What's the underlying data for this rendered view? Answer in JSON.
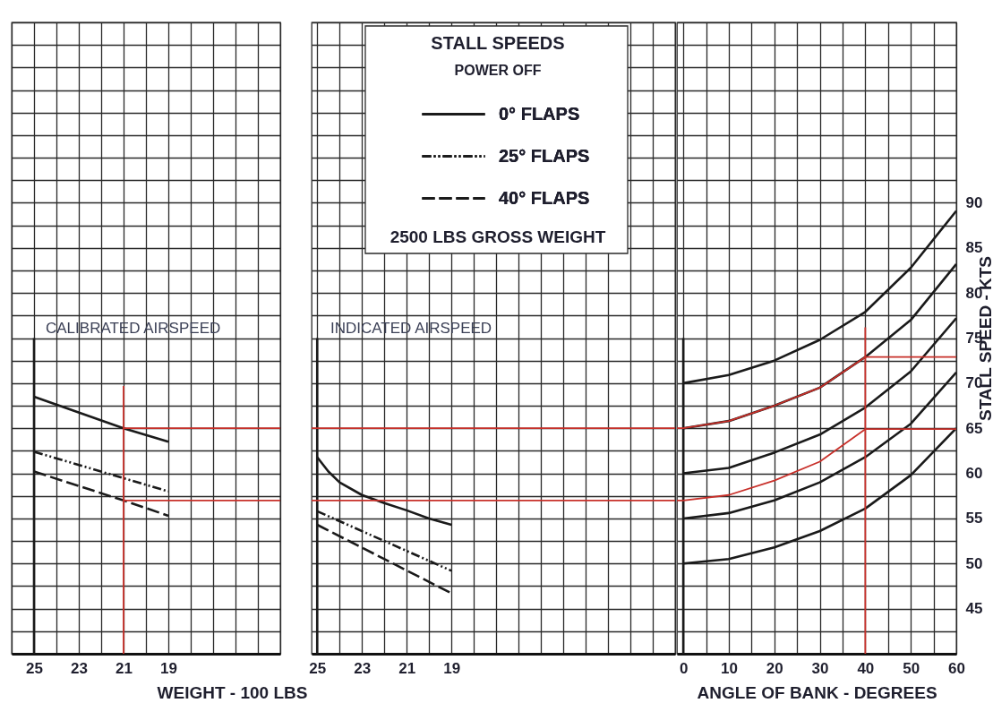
{
  "chart_data": [
    {
      "type": "line",
      "title": "CALIBRATED AIRSPEED",
      "xlabel": "WEIGHT - 100 LBS",
      "xlim": [
        26,
        14
      ],
      "ylim": [
        40,
        110
      ],
      "grid": true,
      "tick_labels": "x",
      "xticks": [
        {
          "value": 26,
          "label": null
        },
        25,
        {
          "value": 24,
          "label": null
        },
        23,
        {
          "value": 22,
          "label": null
        },
        21,
        {
          "value": 20,
          "label": null
        },
        19,
        {
          "value": 18,
          "label": null
        },
        {
          "value": 17,
          "label": null
        },
        {
          "value": 16,
          "label": null
        },
        {
          "value": 15,
          "label": null
        },
        {
          "value": 14,
          "label": null
        }
      ],
      "yticks": [
        {
          "value": 40,
          "label": null
        },
        {
          "value": 42.5,
          "label": null
        },
        45,
        {
          "value": 47.5,
          "label": null
        },
        50,
        {
          "value": 52.5,
          "label": null
        },
        55,
        {
          "value": 57.5,
          "label": null
        },
        60,
        {
          "value": 62.5,
          "label": null
        },
        65,
        {
          "value": 67.5,
          "label": null
        },
        70,
        {
          "value": 72.5,
          "label": null
        },
        75,
        {
          "value": 77.5,
          "label": null
        },
        80,
        {
          "value": 82.5,
          "label": null
        },
        85,
        {
          "value": 87.5,
          "label": null
        },
        90,
        {
          "value": 92.5,
          "label": null
        },
        {
          "value": 95,
          "label": null
        },
        {
          "value": 97.5,
          "label": null
        },
        {
          "value": 100,
          "label": null
        },
        {
          "value": 102.5,
          "label": null
        },
        {
          "value": 105,
          "label": null
        },
        {
          "value": 107.5,
          "label": null
        },
        {
          "value": 110,
          "label": null
        }
      ],
      "series": [
        {
          "color": "#1a1a1a",
          "line_style": "solid",
          "x": [
            25,
            21,
            19
          ],
          "values": [
            68.5,
            65,
            63.5
          ]
        },
        {
          "color": "#1a1a1a",
          "line_style": "dotted",
          "x": [
            25,
            19
          ],
          "values": [
            62.4,
            58.0
          ]
        },
        {
          "color": "#1a1a1a",
          "line_style": "dashed",
          "x": [
            25,
            21,
            19
          ],
          "values": [
            60.2,
            57,
            55.3
          ]
        },
        {
          "color": "#1a1a1a",
          "line_style": "solid",
          "x": [
            25,
            25
          ],
          "values": [
            40,
            75
          ]
        },
        {
          "color": "#c8302a",
          "line_style": "solid",
          "x": [
            21,
            21
          ],
          "values": [
            40,
            69.7
          ]
        },
        {
          "color": "#c8302a",
          "line_style": "solid",
          "x": [
            21,
            14
          ],
          "values": [
            65,
            65
          ]
        },
        {
          "color": "#c8302a",
          "line_style": "solid",
          "x": [
            21,
            14
          ],
          "values": [
            57,
            57
          ]
        }
      ]
    },
    {
      "type": "line",
      "title": "INDICATED AIRSPEED",
      "annotations": [
        "STALL SPEEDS",
        "POWER OFF",
        "2500 LBS GROSS WEIGHT"
      ],
      "legend": "top",
      "xlim": [
        25.25,
        9
      ],
      "ylim": [
        40,
        110
      ],
      "grid": true,
      "tick_labels": "x",
      "xticks": [
        25,
        {
          "value": 24,
          "label": null
        },
        23,
        {
          "value": 22,
          "label": null
        },
        21,
        {
          "value": 20,
          "label": null
        },
        19,
        {
          "value": 18,
          "label": null
        },
        {
          "value": 17,
          "label": null
        },
        {
          "value": 16,
          "label": null
        },
        {
          "value": 15,
          "label": null
        },
        {
          "value": 14,
          "label": null
        },
        {
          "value": 13,
          "label": null
        },
        {
          "value": 12,
          "label": null
        },
        {
          "value": 11,
          "label": null
        },
        {
          "value": 10,
          "label": null
        },
        {
          "value": 9,
          "label": null
        }
      ],
      "yticks": [
        {
          "value": 40,
          "label": null
        },
        {
          "value": 42.5,
          "label": null
        },
        45,
        {
          "value": 47.5,
          "label": null
        },
        50,
        {
          "value": 52.5,
          "label": null
        },
        55,
        {
          "value": 57.5,
          "label": null
        },
        60,
        {
          "value": 62.5,
          "label": null
        },
        65,
        {
          "value": 67.5,
          "label": null
        },
        70,
        {
          "value": 72.5,
          "label": null
        },
        75,
        {
          "value": 77.5,
          "label": null
        },
        80,
        {
          "value": 82.5,
          "label": null
        },
        85,
        {
          "value": 87.5,
          "label": null
        },
        90,
        {
          "value": 92.5,
          "label": null
        },
        {
          "value": 95,
          "label": null
        },
        {
          "value": 97.5,
          "label": null
        },
        {
          "value": 100,
          "label": null
        },
        {
          "value": 102.5,
          "label": null
        },
        {
          "value": 105,
          "label": null
        },
        {
          "value": 107.5,
          "label": null
        },
        {
          "value": 110,
          "label": null
        }
      ],
      "series": [
        {
          "name": "0° FLAPS",
          "color": "#1a1a1a",
          "line_style": "solid",
          "x": [
            25,
            24.5,
            24,
            23,
            22,
            21,
            20,
            19
          ],
          "values": [
            61.8,
            60.2,
            59,
            57.6,
            56.7,
            55.9,
            55,
            54.3
          ]
        },
        {
          "name": "25° FLAPS",
          "color": "#1a1a1a",
          "line_style": "dotted",
          "x": [
            25,
            19
          ],
          "values": [
            55.8,
            49.2
          ]
        },
        {
          "name": "40° FLAPS",
          "color": "#1a1a1a",
          "line_style": "dashed",
          "x": [
            25,
            19
          ],
          "values": [
            54.3,
            46.7
          ]
        },
        {
          "color": "#1a1a1a",
          "line_style": "solid",
          "x": [
            25,
            25
          ],
          "values": [
            40,
            75
          ]
        },
        {
          "color": "#c8302a",
          "line_style": "solid",
          "x": [
            25.25,
            9
          ],
          "values": [
            65,
            65
          ]
        },
        {
          "color": "#c8302a",
          "line_style": "solid",
          "x": [
            25.25,
            9
          ],
          "values": [
            57,
            57
          ]
        }
      ]
    },
    {
      "type": "line",
      "xlabel": "ANGLE OF BANK - DEGREES",
      "ylabel": "STALL SPEED - KTS",
      "xlim": [
        -1.4,
        60
      ],
      "ylim": [
        40,
        110
      ],
      "grid": true,
      "xticks": [
        0,
        {
          "value": 5,
          "label": null
        },
        10,
        {
          "value": 15,
          "label": null
        },
        20,
        {
          "value": 25,
          "label": null
        },
        30,
        {
          "value": 35,
          "label": null
        },
        40,
        {
          "value": 45,
          "label": null
        },
        50,
        {
          "value": 55,
          "label": null
        },
        60
      ],
      "yticks": [
        {
          "value": 40,
          "label": null
        },
        {
          "value": 42.5,
          "label": null
        },
        45,
        {
          "value": 47.5,
          "label": null
        },
        50,
        {
          "value": 52.5,
          "label": null
        },
        55,
        {
          "value": 57.5,
          "label": null
        },
        60,
        {
          "value": 62.5,
          "label": null
        },
        65,
        {
          "value": 67.5,
          "label": null
        },
        70,
        {
          "value": 72.5,
          "label": null
        },
        75,
        {
          "value": 77.5,
          "label": null
        },
        80,
        {
          "value": 82.5,
          "label": null
        },
        85,
        {
          "value": 87.5,
          "label": null
        },
        90,
        {
          "value": 92.5,
          "label": null
        },
        {
          "value": 95,
          "label": null
        },
        {
          "value": 97.5,
          "label": null
        },
        {
          "value": 100,
          "label": null
        },
        {
          "value": 102.5,
          "label": null
        },
        {
          "value": 105,
          "label": null
        },
        {
          "value": 107.5,
          "label": null
        },
        {
          "value": 110,
          "label": null
        }
      ],
      "series": [
        {
          "color": "#1a1a1a",
          "line_style": "solid",
          "x": [
            0,
            10,
            20,
            30,
            40,
            50,
            60
          ],
          "values": [
            70,
            70.9,
            72.5,
            74.8,
            77.9,
            82.8,
            89.1
          ]
        },
        {
          "color": "#1a1a1a",
          "line_style": "solid",
          "x": [
            0,
            10,
            20,
            30,
            40,
            50,
            60
          ],
          "values": [
            65,
            65.8,
            67.5,
            69.5,
            72.9,
            77,
            83.2
          ]
        },
        {
          "color": "#1a1a1a",
          "line_style": "solid",
          "x": [
            0,
            10,
            20,
            30,
            40,
            50,
            60
          ],
          "values": [
            60,
            60.6,
            62.3,
            64.3,
            67.3,
            71.3,
            77.2
          ]
        },
        {
          "color": "#1a1a1a",
          "line_style": "solid",
          "x": [
            0,
            10,
            20,
            30,
            40,
            50,
            60
          ],
          "values": [
            55,
            55.6,
            57,
            59,
            61.8,
            65.5,
            71.2
          ]
        },
        {
          "color": "#1a1a1a",
          "line_style": "solid",
          "x": [
            0,
            10,
            20,
            30,
            40,
            50,
            60
          ],
          "values": [
            50,
            50.5,
            51.8,
            53.6,
            56.1,
            59.8,
            65
          ]
        },
        {
          "color": "#1a1a1a",
          "line_style": "solid",
          "x": [
            0,
            0
          ],
          "values": [
            40,
            75
          ]
        },
        {
          "color": "#c8302a",
          "line_style": "solid",
          "x": [
            -1.4,
            0,
            10,
            20,
            30,
            40
          ],
          "values": [
            65,
            65,
            65.8,
            67.5,
            69.5,
            72.9
          ]
        },
        {
          "color": "#c8302a",
          "line_style": "solid",
          "x": [
            -1.4,
            0,
            10,
            20,
            30,
            40
          ],
          "values": [
            57,
            57,
            57.6,
            59.2,
            61.3,
            64.9
          ]
        },
        {
          "color": "#c8302a",
          "line_style": "solid",
          "x": [
            40,
            40
          ],
          "values": [
            40,
            76.2
          ]
        },
        {
          "color": "#c8302a",
          "line_style": "solid",
          "x": [
            40,
            60
          ],
          "values": [
            72.9,
            72.9
          ]
        },
        {
          "color": "#c8302a",
          "line_style": "solid",
          "x": [
            40,
            60
          ],
          "values": [
            64.9,
            64.9
          ]
        }
      ]
    }
  ]
}
